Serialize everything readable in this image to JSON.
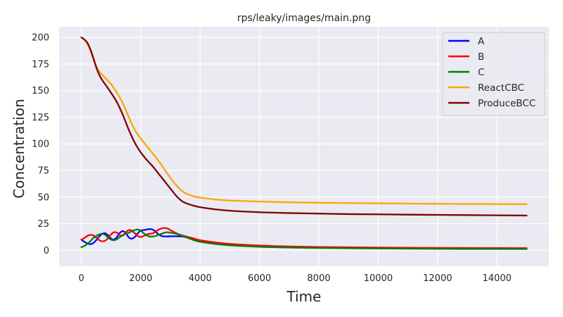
{
  "chart_data": {
    "type": "line",
    "title": "rps/leaky/images/main.png",
    "xlabel": "Time",
    "ylabel": "Concentration",
    "xlim": [
      -750,
      15750
    ],
    "ylim": [
      -15,
      210
    ],
    "xticks": [
      0,
      2000,
      4000,
      6000,
      8000,
      10000,
      12000,
      14000
    ],
    "yticks": [
      0,
      25,
      50,
      75,
      100,
      125,
      150,
      175,
      200
    ],
    "grid": true,
    "legend_position": "top-right",
    "series": [
      {
        "name": "A",
        "color": "#0000ff",
        "x": [
          0,
          100,
          200,
          300,
          400,
          500,
          600,
          700,
          800,
          900,
          1000,
          1100,
          1200,
          1300,
          1400,
          1500,
          1600,
          1700,
          1800,
          1900,
          2000,
          2100,
          2200,
          2300,
          2400,
          2500,
          2600,
          2700,
          2800,
          2900,
          3000,
          3200,
          3400,
          3600,
          3800,
          4000,
          4500,
          5000,
          6000,
          7000,
          8000,
          10000,
          12000,
          14000,
          15000
        ],
        "y": [
          10,
          8,
          6.5,
          5.8,
          6.8,
          9.5,
          13,
          15.5,
          16,
          14,
          11,
          10,
          12.5,
          16.5,
          18,
          16,
          12,
          11,
          12.5,
          16,
          18.5,
          19,
          19.5,
          20,
          19.5,
          17.5,
          15,
          13.5,
          13,
          13,
          13.2,
          13.2,
          13,
          12,
          11,
          9,
          7,
          5.5,
          4,
          3.2,
          2.7,
          2.2,
          1.9,
          1.7,
          1.6
        ]
      },
      {
        "name": "B",
        "color": "#ff0000",
        "x": [
          0,
          100,
          200,
          300,
          400,
          500,
          600,
          700,
          800,
          900,
          1000,
          1100,
          1200,
          1300,
          1400,
          1500,
          1600,
          1700,
          1800,
          1900,
          2000,
          2100,
          2200,
          2300,
          2400,
          2500,
          2600,
          2700,
          2800,
          2900,
          3000,
          3200,
          3400,
          3600,
          3800,
          4000,
          4500,
          5000,
          6000,
          7000,
          8000,
          10000,
          12000,
          14000,
          15000
        ],
        "y": [
          10,
          11.5,
          13.5,
          14.5,
          14,
          12,
          9.5,
          8.5,
          9,
          11.5,
          15,
          17,
          16.5,
          14,
          14,
          17,
          19,
          18.5,
          16,
          13.5,
          12.5,
          13.5,
          15,
          15.5,
          16,
          17.5,
          19.5,
          20.5,
          21,
          20.5,
          19,
          16,
          14,
          12.5,
          11,
          9.5,
          7.5,
          6,
          4.5,
          3.6,
          3.1,
          2.6,
          2.3,
          2.1,
          2
        ]
      },
      {
        "name": "C",
        "color": "#008000",
        "x": [
          0,
          100,
          200,
          300,
          400,
          500,
          600,
          700,
          800,
          900,
          1000,
          1100,
          1200,
          1300,
          1400,
          1500,
          1600,
          1700,
          1800,
          1900,
          2000,
          2100,
          2200,
          2300,
          2400,
          2500,
          2600,
          2700,
          2800,
          2900,
          3000,
          3200,
          3400,
          3600,
          3800,
          4000,
          4500,
          5000,
          6000,
          7000,
          8000,
          10000,
          12000,
          14000,
          15000
        ],
        "y": [
          3,
          4,
          6,
          8.5,
          11.5,
          13.5,
          15,
          15.5,
          14.5,
          12,
          10,
          9.5,
          10.5,
          12.5,
          14.5,
          15.5,
          16.5,
          18,
          19,
          19.5,
          18.5,
          16,
          14,
          13,
          13,
          13.5,
          14.5,
          15.5,
          16.5,
          17,
          16.5,
          15.5,
          13.5,
          11.5,
          9.5,
          8,
          6,
          4.7,
          3.3,
          2.6,
          2.2,
          1.7,
          1.4,
          1.3,
          1.2
        ]
      },
      {
        "name": "ReactCBC",
        "color": "#ffa500",
        "x": [
          0,
          100,
          200,
          300,
          400,
          500,
          600,
          700,
          800,
          1000,
          1200,
          1400,
          1600,
          1800,
          2000,
          2200,
          2400,
          2600,
          2800,
          3000,
          3200,
          3400,
          3600,
          3800,
          4000,
          4500,
          5000,
          6000,
          7000,
          8000,
          9000,
          10000,
          11000,
          12000,
          13000,
          14000,
          15000
        ],
        "y": [
          200,
          198,
          194,
          188,
          180,
          173,
          168,
          165,
          162,
          156,
          148,
          138,
          125,
          113,
          105,
          98,
          91,
          84,
          76,
          68,
          61,
          55.5,
          52.5,
          50.5,
          49.5,
          47.8,
          46.8,
          45.8,
          45.1,
          44.7,
          44.4,
          44.1,
          43.9,
          43.7,
          43.5,
          43.4,
          43.3
        ]
      },
      {
        "name": "ProduceBCC",
        "color": "#800000",
        "x": [
          0,
          100,
          200,
          300,
          400,
          500,
          600,
          700,
          800,
          1000,
          1200,
          1400,
          1600,
          1800,
          2000,
          2200,
          2400,
          2600,
          2800,
          3000,
          3200,
          3400,
          3600,
          3800,
          4000,
          4500,
          5000,
          6000,
          7000,
          8000,
          9000,
          10000,
          11000,
          12000,
          13000,
          14000,
          15000
        ],
        "y": [
          200,
          198,
          195,
          189,
          181,
          172,
          165,
          160,
          156,
          148,
          139,
          127,
          113,
          101,
          92,
          85,
          79,
          72,
          65,
          58,
          51,
          46,
          43.5,
          41.8,
          40.5,
          38.5,
          37.2,
          35.8,
          35,
          34.5,
          34,
          33.8,
          33.5,
          33.3,
          33.1,
          32.9,
          32.7
        ]
      }
    ]
  }
}
